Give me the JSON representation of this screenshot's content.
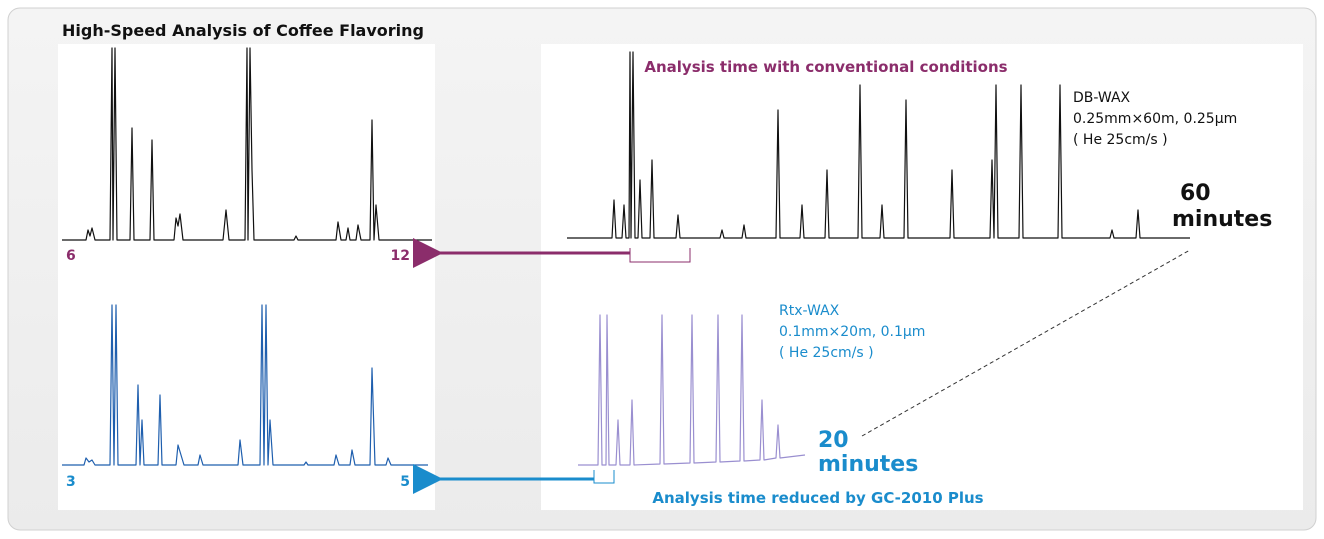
{
  "title": "High-Speed Analysis of Coffee Flavoring",
  "conventional": {
    "heading": "Analysis time with conventional conditions",
    "column": [
      "DB-WAX",
      "0.25mm×60m, 0.25µm",
      "( He 25cm/s )"
    ],
    "time": [
      "60",
      "minutes"
    ],
    "zoom_start": 6,
    "zoom_end": 12
  },
  "fast": {
    "heading": "Analysis time reduced by GC-2010 Plus",
    "column": [
      "Rtx-WAX",
      "0.1mm×20m, 0.1µm",
      "( He 25cm/s )"
    ],
    "time": [
      "20",
      "minutes"
    ],
    "zoom_start": 3,
    "zoom_end": 5
  }
}
